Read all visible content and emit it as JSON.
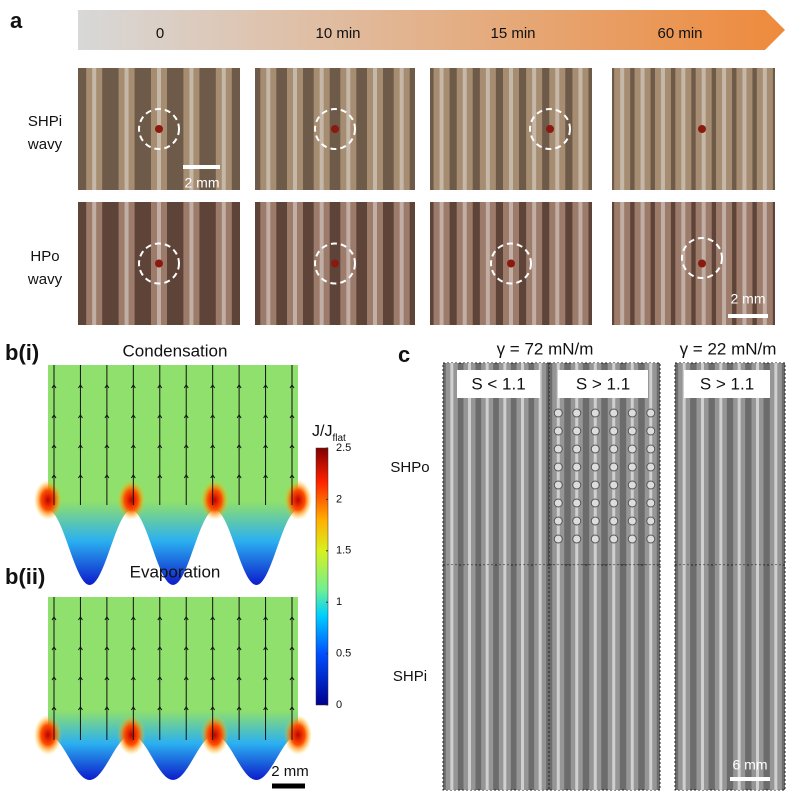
{
  "panel_a": {
    "label": "a",
    "timeline": [
      "0",
      "10 min",
      "15 min",
      "60 min"
    ],
    "rows": [
      {
        "label": [
          "SHPi",
          "wavy"
        ]
      },
      {
        "label": [
          "HPo",
          "wavy"
        ]
      }
    ],
    "scale_bar_top": "2 mm",
    "scale_bar_bottom": "2 mm"
  },
  "panel_b": {
    "label_i": "b(i)",
    "title_i": "Condensation",
    "label_ii": "b(ii)",
    "title_ii": "Evaporation",
    "colorbar": {
      "title": "J/J",
      "title_sub": "flat",
      "ticks": [
        0,
        0.5,
        1,
        1.5,
        2,
        2.5
      ]
    },
    "scale_bar": "2 mm"
  },
  "panel_c": {
    "label": "c",
    "groups": [
      "γ = 72 mN/m",
      "γ = 22 mN/m"
    ],
    "columns": [
      "S < 1.1",
      "S > 1.1",
      "S > 1.1"
    ],
    "rows": [
      "SHPo",
      "SHPi"
    ],
    "scale_bar": "6 mm"
  }
}
